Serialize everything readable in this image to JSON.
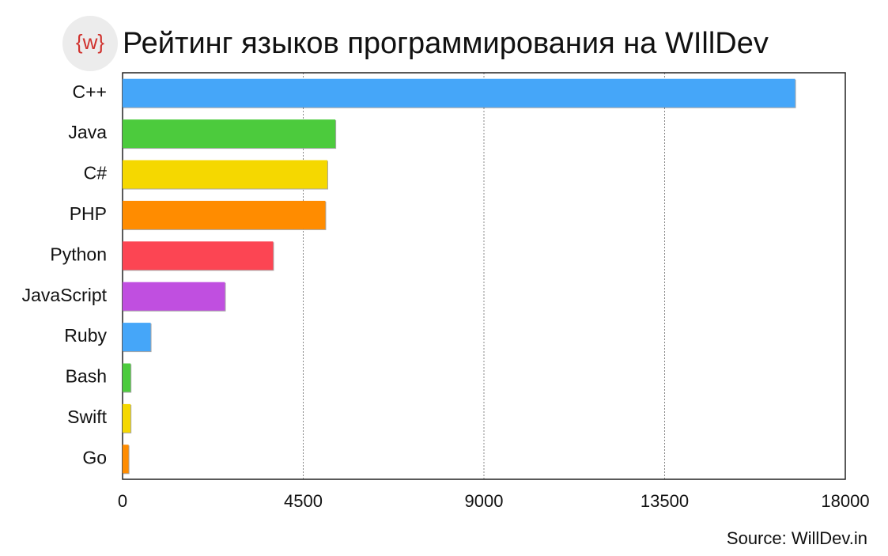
{
  "chart_data": {
    "type": "barh",
    "logo": "{w}",
    "title": "Рейтинг языков программирования на WIllDev",
    "source": "Source: WillDev.in",
    "categories": [
      "C++",
      "Java",
      "C#",
      "PHP",
      "Python",
      "JavaScript",
      "Ruby",
      "Bash",
      "Swift",
      "Go"
    ],
    "values": [
      16750,
      5300,
      5100,
      5050,
      3750,
      2550,
      700,
      200,
      200,
      150
    ],
    "colors": [
      "#45a6f9",
      "#4ccb3d",
      "#f5d800",
      "#ff8c00",
      "#fc4553",
      "#c04fe0",
      "#45a6f9",
      "#4ccb3d",
      "#f5d800",
      "#ff8c00"
    ],
    "xlim": [
      0,
      18000
    ],
    "xticks": [
      0,
      4500,
      9000,
      13500,
      18000
    ],
    "grid": true
  }
}
